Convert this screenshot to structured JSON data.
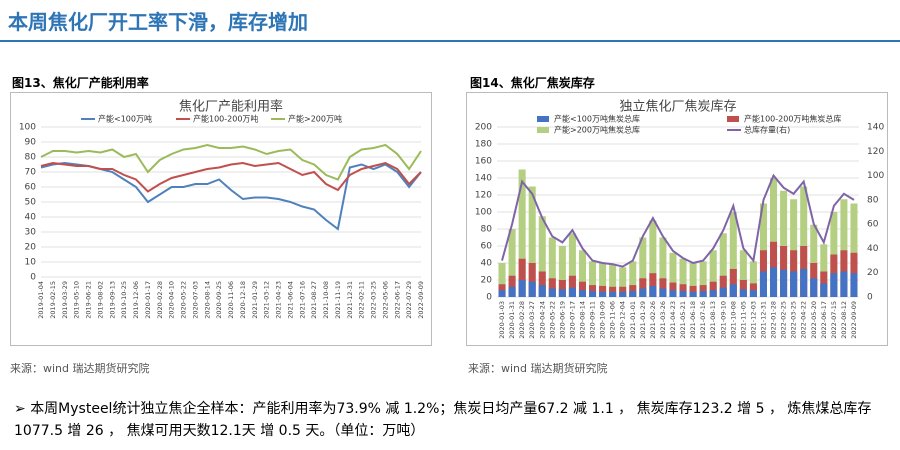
{
  "title": "本周焦化厂开工率下滑，库存增加",
  "figures": [
    {
      "caption": "图13、焦化厂产能利用率",
      "source": "来源：wind   瑞达期货研究院"
    },
    {
      "caption": "图14、焦化厂焦炭库存",
      "source": "来源：wind   瑞达期货研究院"
    }
  ],
  "bullet": "本周Mysteel统计独立焦企全样本：产能利用率为73.9% 减 1.2%；焦炭日均产量67.2 减 1.1 ， 焦炭库存123.2 增 5 ， 炼焦煤总库存1077.5 增 26 ， 焦煤可用天数12.1天 增 0.5 天。（单位：万吨）",
  "chart_data": [
    {
      "type": "line",
      "title": "焦化厂产能利用率",
      "legend": "top",
      "categories": [
        "2019-01-04",
        "2019-02-15",
        "2019-03-29",
        "2019-05-10",
        "2019-06-21",
        "2019-08-02",
        "2019-09-13",
        "2019-10-25",
        "2019-12-06",
        "2020-01-17",
        "2020-02-28",
        "2020-04-10",
        "2020-05-22",
        "2020-07-03",
        "2020-08-14",
        "2020-09-25",
        "2020-11-06",
        "2020-12-18",
        "2021-01-29",
        "2021-03-12",
        "2021-04-23",
        "2021-06-04",
        "2021-07-16",
        "2021-08-27",
        "2021-10-08",
        "2021-11-19",
        "2021-12-31",
        "2022-02-11",
        "2022-03-25",
        "2022-05-06",
        "2022-06-17",
        "2022-07-29",
        "2022-09-09"
      ],
      "series": [
        {
          "name": "产能<100万吨",
          "color": "#4f81bd",
          "values": [
            73,
            75,
            76,
            75,
            74,
            72,
            70,
            65,
            60,
            50,
            55,
            60,
            60,
            62,
            62,
            65,
            58,
            52,
            53,
            53,
            52,
            50,
            47,
            45,
            38,
            32,
            73,
            75,
            72,
            75,
            70,
            60,
            70
          ]
        },
        {
          "name": "产能100-200万吨",
          "color": "#c0504d",
          "values": [
            74,
            76,
            75,
            74,
            74,
            72,
            72,
            68,
            65,
            57,
            62,
            66,
            68,
            70,
            72,
            73,
            75,
            76,
            74,
            75,
            76,
            72,
            68,
            70,
            62,
            58,
            68,
            72,
            74,
            76,
            72,
            62,
            70
          ]
        },
        {
          "name": "产能>200万吨",
          "color": "#9bbb59",
          "values": [
            80,
            84,
            84,
            83,
            84,
            83,
            85,
            80,
            82,
            70,
            78,
            82,
            85,
            86,
            88,
            86,
            86,
            87,
            85,
            82,
            84,
            85,
            78,
            75,
            68,
            65,
            80,
            85,
            86,
            88,
            82,
            72,
            84
          ]
        }
      ],
      "ylim": [
        0,
        100
      ],
      "yticks": [
        0,
        10,
        20,
        30,
        40,
        50,
        60,
        70,
        80,
        90,
        100
      ],
      "grid": true
    },
    {
      "type": "bar",
      "title": "独立焦化厂焦炭库存",
      "legend": "top",
      "categories": [
        "2020-01-03",
        "2020-01-31",
        "2020-02-28",
        "2020-03-27",
        "2020-04-24",
        "2020-05-22",
        "2020-06-19",
        "2020-07-17",
        "2020-08-14",
        "2020-09-11",
        "2020-10-09",
        "2020-11-06",
        "2020-12-04",
        "2021-01-01",
        "2021-01-29",
        "2021-02-26",
        "2021-03-26",
        "2021-04-23",
        "2021-05-21",
        "2021-06-18",
        "2021-07-16",
        "2021-08-13",
        "2021-09-10",
        "2021-10-08",
        "2021-11-05",
        "2021-12-03",
        "2021-12-31",
        "2022-01-28",
        "2022-02-25",
        "2022-03-25",
        "2022-04-22",
        "2022-05-20",
        "2022-06-17",
        "2022-07-15",
        "2022-08-12",
        "2022-09-09"
      ],
      "series": [
        {
          "name": "产能<100万吨焦炭总库",
          "color": "#4472c4",
          "type": "bar",
          "values": [
            8,
            12,
            20,
            18,
            14,
            10,
            9,
            11,
            8,
            7,
            6,
            6,
            6,
            7,
            10,
            13,
            10,
            8,
            7,
            6,
            7,
            8,
            11,
            15,
            9,
            8,
            30,
            35,
            32,
            30,
            33,
            22,
            16,
            28,
            30,
            28
          ]
        },
        {
          "name": "产能100-200万吨焦炭总库",
          "color": "#c0504d",
          "type": "bar",
          "values": [
            15,
            25,
            45,
            40,
            30,
            22,
            20,
            25,
            18,
            14,
            13,
            12,
            12,
            14,
            22,
            28,
            22,
            17,
            15,
            13,
            14,
            18,
            25,
            33,
            20,
            16,
            55,
            65,
            60,
            55,
            60,
            40,
            30,
            50,
            55,
            52
          ]
        },
        {
          "name": "产能>200万吨焦炭总库",
          "color": "#b5cf82",
          "type": "bar",
          "values": [
            40,
            80,
            150,
            130,
            95,
            70,
            60,
            75,
            55,
            42,
            40,
            38,
            35,
            42,
            70,
            90,
            70,
            52,
            45,
            40,
            42,
            55,
            75,
            100,
            55,
            42,
            110,
            140,
            125,
            115,
            130,
            85,
            62,
            100,
            115,
            110
          ]
        },
        {
          "name": "总库存量(右)",
          "color": "#7f64a8",
          "type": "line",
          "axis": "y2",
          "values": [
            30,
            60,
            95,
            85,
            65,
            50,
            45,
            55,
            40,
            30,
            28,
            27,
            25,
            30,
            50,
            65,
            50,
            38,
            32,
            28,
            30,
            40,
            55,
            75,
            40,
            30,
            80,
            100,
            90,
            85,
            95,
            60,
            45,
            75,
            85,
            80
          ]
        }
      ],
      "ylim": [
        0,
        200
      ],
      "yticks": [
        0,
        20,
        40,
        60,
        80,
        100,
        120,
        140,
        160,
        180,
        200
      ],
      "y2lim": [
        0,
        140
      ],
      "y2ticks": [
        0,
        20,
        40,
        60,
        80,
        100,
        120,
        140
      ],
      "grid": true
    }
  ]
}
